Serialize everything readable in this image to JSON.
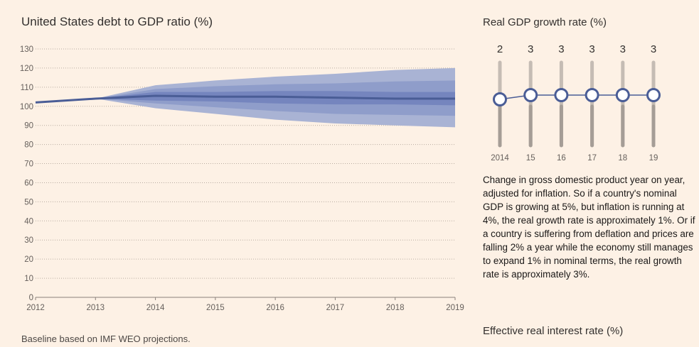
{
  "main_title": "United States debt to GDP ratio (%)",
  "footnote": "Baseline based on IMF WEO projections.",
  "colors": {
    "background": "#fdf1e5",
    "band_outer": "#a9b3d4",
    "band_middle": "#8f9dca",
    "band_inner": "#7585be",
    "median_line": "#4a5d96",
    "axis_text": "#66605c",
    "grid": "#b8aca1",
    "slider_track": "#c5bcb4",
    "slider_handle_stroke": "#4a5d96",
    "slider_handle_fill": "#ffffff"
  },
  "chart_data": [
    {
      "type": "area",
      "title": "United States debt to GDP ratio (%)",
      "xlabel": "",
      "ylabel": "",
      "x": [
        2012,
        2013,
        2014,
        2015,
        2016,
        2017,
        2018,
        2019
      ],
      "xlim": [
        2012,
        2019
      ],
      "ylim": [
        0,
        130
      ],
      "yticks": [
        0,
        10,
        20,
        30,
        40,
        50,
        60,
        70,
        80,
        90,
        100,
        110,
        120,
        130
      ],
      "grid": true,
      "median": [
        102,
        104,
        105.5,
        105,
        105,
        104.5,
        104,
        104
      ],
      "bands": [
        {
          "level": "outer",
          "lower": [
            102,
            104,
            99,
            96,
            93,
            91,
            90,
            89
          ],
          "upper": [
            102,
            104,
            111,
            113.5,
            115.5,
            117,
            119,
            120
          ]
        },
        {
          "level": "middle",
          "lower": [
            102,
            104,
            101.5,
            99.5,
            97.5,
            96,
            95.5,
            95
          ],
          "upper": [
            102,
            104,
            109,
            110.5,
            111.5,
            112,
            113,
            113.5
          ]
        },
        {
          "level": "inner",
          "lower": [
            102,
            104,
            103,
            102.5,
            101.5,
            101,
            101,
            100.5
          ],
          "upper": [
            102,
            104,
            107.5,
            107.5,
            108,
            108,
            107.5,
            107.5
          ]
        }
      ]
    },
    {
      "type": "line",
      "title": "Real GDP growth rate (%)",
      "categories": [
        "2014",
        "15",
        "16",
        "17",
        "18",
        "19"
      ],
      "values": [
        2,
        3,
        3,
        3,
        3,
        3
      ],
      "value_labels": [
        "2",
        "3",
        "3",
        "3",
        "3",
        "3"
      ]
    }
  ],
  "gdp_panel": {
    "title": "Real GDP growth rate (%)",
    "description": "Change in gross domestic product year on year, adjusted for inflation. So if a country's nominal GDP is growing at 5%, but inflation is running at 4%, the real growth rate is approximately 1%. Or if a country is suffering from deflation and prices are falling 2% a year while the economy still manages to expand 1% in nominal terms, the real growth rate is approximately 3%."
  },
  "interest_panel": {
    "title": "Effective real interest rate (%)"
  }
}
